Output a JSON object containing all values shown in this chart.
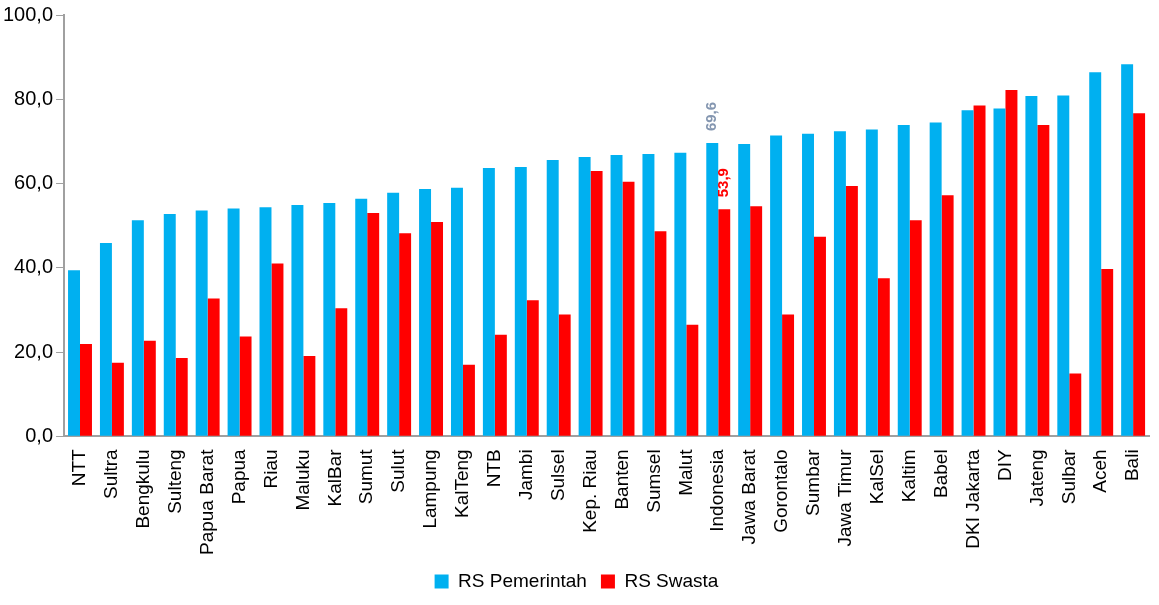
{
  "chart_data": {
    "type": "bar",
    "categories": [
      "NTT",
      "Sultra",
      "Bengkulu",
      "Sulteng",
      "Papua Barat",
      "Papua",
      "Riau",
      "Maluku",
      "KalBar",
      "Sumut",
      "Sulut",
      "Lampung",
      "KalTeng",
      "NTB",
      "Jambi",
      "Sulsel",
      "Kep. Riau",
      "Banten",
      "Sumsel",
      "Malut",
      "Indonesia",
      "Jawa Barat",
      "Gorontalo",
      "Sumbar",
      "Jawa Timur",
      "KalSel",
      "Kaltim",
      "Babel",
      "DKI Jakarta",
      "DIY",
      "Jateng",
      "Sulbar",
      "Aceh",
      "Bali"
    ],
    "series": [
      {
        "name": "RS Pemerintah",
        "color": "#00b0f0",
        "values": [
          39.4,
          45.9,
          51.3,
          52.8,
          53.6,
          54.1,
          54.4,
          54.9,
          55.4,
          56.4,
          57.8,
          58.7,
          59.0,
          63.7,
          63.9,
          65.6,
          66.3,
          66.8,
          67.0,
          67.3,
          69.6,
          69.4,
          71.4,
          71.8,
          72.4,
          72.8,
          73.9,
          74.5,
          77.4,
          77.8,
          80.8,
          80.9,
          86.4,
          88.3
        ],
        "value_labels": [
          null,
          null,
          null,
          null,
          null,
          null,
          null,
          null,
          null,
          null,
          null,
          null,
          null,
          null,
          null,
          null,
          null,
          null,
          null,
          null,
          "69,6",
          null,
          null,
          null,
          null,
          null,
          null,
          null,
          null,
          null,
          null,
          null,
          null,
          null
        ]
      },
      {
        "name": "RS Swasta",
        "color": "#ff0000",
        "values": [
          21.9,
          17.5,
          22.7,
          18.6,
          32.7,
          23.7,
          41.0,
          19.1,
          30.4,
          53.0,
          48.2,
          50.9,
          17.0,
          24.1,
          32.3,
          28.9,
          63.0,
          60.4,
          48.7,
          26.5,
          53.9,
          54.6,
          28.9,
          47.4,
          59.4,
          37.5,
          51.3,
          57.2,
          78.5,
          82.2,
          73.9,
          14.9,
          39.7,
          76.7
        ],
        "value_labels": [
          null,
          null,
          null,
          null,
          null,
          null,
          null,
          null,
          null,
          null,
          null,
          null,
          null,
          null,
          null,
          null,
          null,
          null,
          null,
          null,
          "53,9",
          null,
          null,
          null,
          null,
          null,
          null,
          null,
          null,
          null,
          null,
          null,
          null,
          null
        ]
      }
    ],
    "ylim": [
      0,
      100
    ],
    "yticks": [
      {
        "value": 0,
        "label": "0,0"
      },
      {
        "value": 20,
        "label": "20,0"
      },
      {
        "value": 40,
        "label": "40,0"
      },
      {
        "value": 60,
        "label": "60,0"
      },
      {
        "value": 80,
        "label": "80,0"
      },
      {
        "value": 100,
        "label": "100,0"
      }
    ],
    "grid": false,
    "legend": "bottom"
  }
}
